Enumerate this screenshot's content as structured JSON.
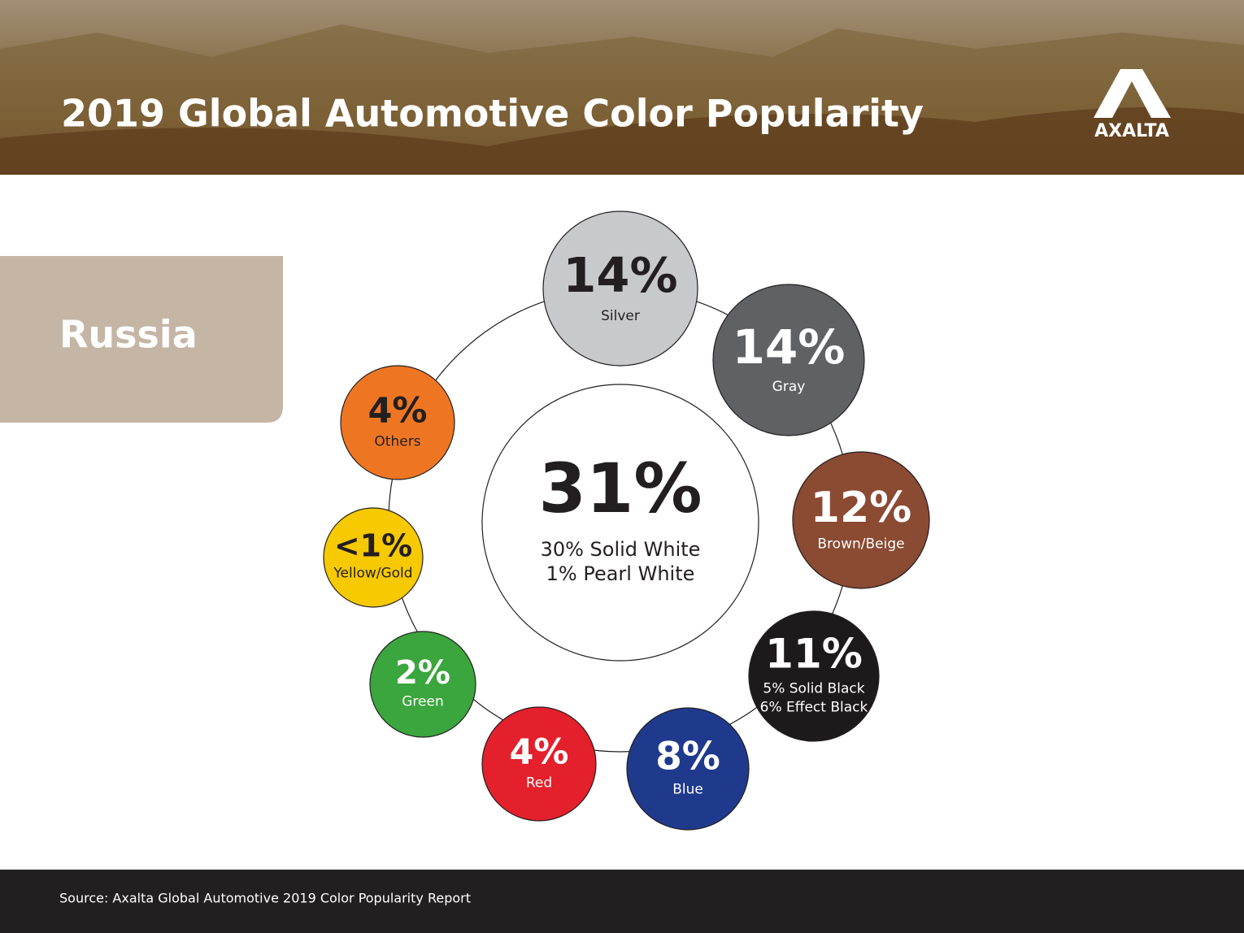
{
  "header": {
    "title": "2019 Global Automotive Color Popularity",
    "logo": "AXALTA"
  },
  "region": "Russia",
  "center": {
    "value": "31%",
    "lines": [
      "30% Solid White",
      "1% Pearl White"
    ]
  },
  "bubbles": [
    {
      "value": "14%",
      "lines": [
        "Silver"
      ],
      "color": "#c8c9cb",
      "text_color": "#231f20"
    },
    {
      "value": "14%",
      "lines": [
        "Gray"
      ],
      "color": "#5f6163",
      "text_color": "#ffffff"
    },
    {
      "value": "12%",
      "lines": [
        "Brown/Beige"
      ],
      "color": "#8b4a32",
      "text_color": "#ffffff"
    },
    {
      "value": "11%",
      "lines": [
        "5% Solid Black",
        "6% Effect Black"
      ],
      "color": "#1d1a1b",
      "text_color": "#ffffff"
    },
    {
      "value": "8%",
      "lines": [
        "Blue"
      ],
      "color": "#1f3a8d",
      "text_color": "#ffffff"
    },
    {
      "value": "4%",
      "lines": [
        "Red"
      ],
      "color": "#e3202c",
      "text_color": "#ffffff"
    },
    {
      "value": "2%",
      "lines": [
        "Green"
      ],
      "color": "#3aa63d",
      "text_color": "#ffffff"
    },
    {
      "value": "<1%",
      "lines": [
        "Yellow/Gold"
      ],
      "color": "#f6c900",
      "text_color": "#231f20"
    },
    {
      "value": "4%",
      "lines": [
        "Others"
      ],
      "color": "#ee7623",
      "text_color": "#231f20"
    }
  ],
  "footer": {
    "source": "Source: Axalta Global Automotive 2019 Color Popularity Report"
  }
}
